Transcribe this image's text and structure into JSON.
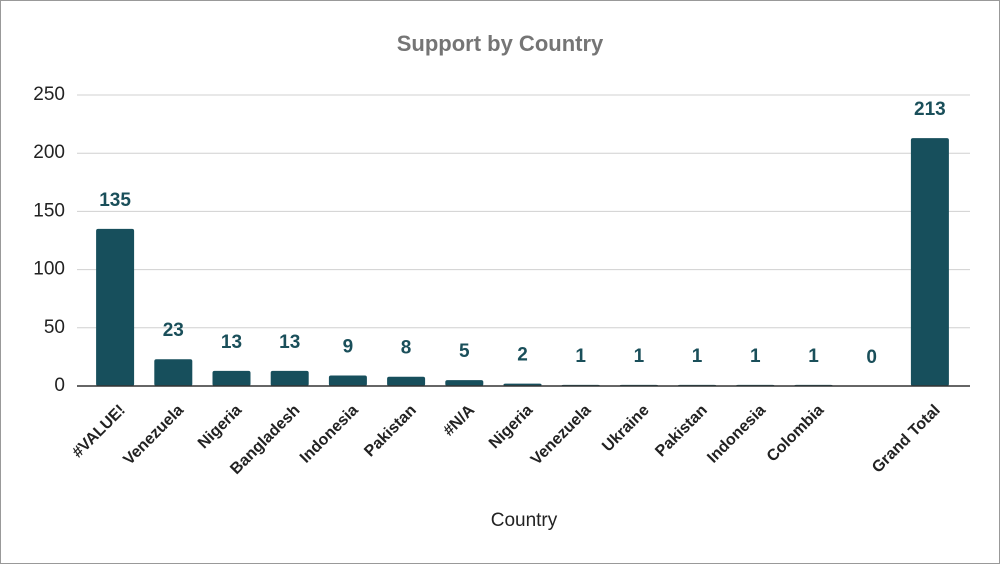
{
  "chart_data": {
    "type": "bar",
    "title": "Support by Country",
    "x_label": "Country",
    "categories": [
      "#VALUE!",
      "Venezuela",
      "Nigeria",
      "Bangladesh",
      "Indonesia",
      "Pakistan",
      "#N/A",
      "Nigeria",
      "Venezuela",
      "Ukraine",
      "Pakistan",
      "Indonesia",
      "Colombia",
      null,
      "Grand Total"
    ],
    "values": [
      135,
      23,
      13,
      13,
      9,
      8,
      5,
      2,
      1,
      1,
      1,
      1,
      1,
      0,
      213
    ],
    "color": "#174f5c",
    "ylim": [
      0,
      250
    ],
    "yticks": [
      0,
      50,
      100,
      150,
      200,
      250
    ],
    "grid": true
  }
}
